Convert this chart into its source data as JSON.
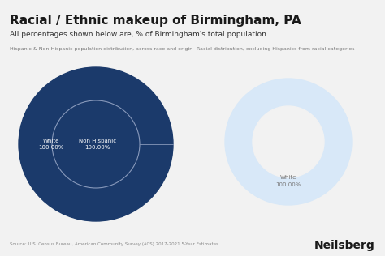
{
  "title": "Racial / Ethnic makeup of Birmingham, PA",
  "subtitle": "All percentages shown below are, % of Birmingham's total population",
  "left_chart_title": "Hispanic & Non-Hispanic population distribution, across race and origin",
  "right_chart_title": "Racial distribution, excluding Hispanics from racial categories",
  "left_outer_label": "White\n100.00%",
  "left_inner_label": "Non Hispanic\n100.00%",
  "right_label": "White\n100.00%",
  "source": "Source: U.S. Census Bureau, American Community Survey (ACS) 2017-2021 5-Year Estimates",
  "brand": "Neilsberg",
  "bg_color": "#f2f2f2",
  "left_outer_color": "#1b3a6b",
  "left_inner_edge_color": "#8899bb",
  "right_outer_color": "#d8e8f8",
  "right_inner_color": "#f2f2f2"
}
